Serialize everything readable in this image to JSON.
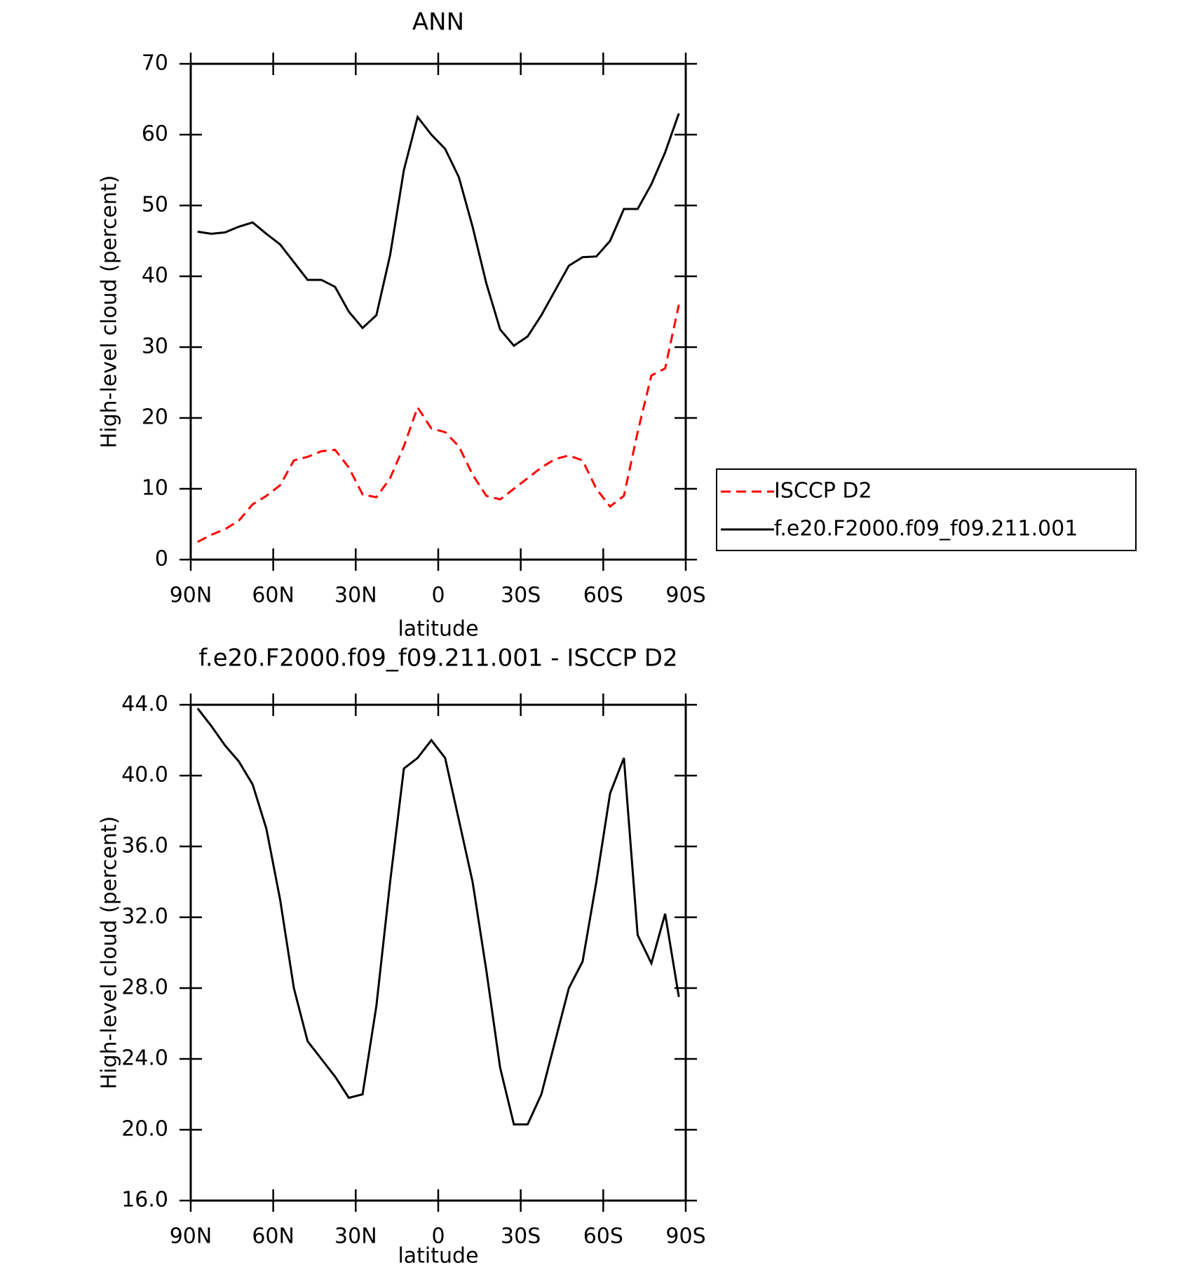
{
  "chart_data": [
    {
      "type": "line",
      "title": "ANN",
      "x_label": "latitude",
      "y_label": "High-level cloud (percent)",
      "x": [
        87.5,
        82.5,
        77.5,
        72.5,
        67.5,
        62.5,
        57.5,
        52.5,
        47.5,
        42.5,
        37.5,
        32.5,
        27.5,
        22.5,
        17.5,
        12.5,
        7.5,
        2.5,
        -2.5,
        -7.5,
        -12.5,
        -17.5,
        -22.5,
        -27.5,
        -32.5,
        -37.5,
        -42.5,
        -47.5,
        -52.5,
        -57.5,
        -62.5,
        -67.5,
        -72.5,
        -77.5,
        -82.5,
        -87.5
      ],
      "series": [
        {
          "name": "ISCCP D2",
          "color": "#ff0000",
          "dashed": true,
          "values": [
            2.5,
            3.5,
            4.3,
            5.5,
            7.8,
            9,
            10.5,
            14,
            14.5,
            15.3,
            15.5,
            13,
            9.2,
            8.8,
            11.5,
            16,
            21.5,
            18.5,
            18,
            16,
            12,
            9,
            8.5,
            10,
            11.5,
            13,
            14.2,
            14.7,
            14,
            10,
            7.5,
            9,
            18,
            26,
            27,
            36
          ]
        },
        {
          "name": "f.e20.F2000.f09_f09.211.001",
          "color": "#000000",
          "dashed": false,
          "values": [
            46.3,
            46.0,
            46.2,
            47.0,
            47.6,
            46,
            44.5,
            42,
            39.5,
            39.5,
            38.5,
            35,
            32.7,
            34.5,
            43,
            55,
            62.5,
            60,
            58,
            54,
            47,
            39,
            32.5,
            30.2,
            31.5,
            34.5,
            38,
            41.5,
            42.7,
            42.8,
            45,
            49.5,
            49.5,
            53,
            57.5,
            63
          ]
        }
      ],
      "xlim": [
        90,
        -90
      ],
      "xticks": [
        {
          "value": 90,
          "label": "90N"
        },
        {
          "value": 60,
          "label": "60N"
        },
        {
          "value": 30,
          "label": "30N"
        },
        0,
        {
          "value": -30,
          "label": "30S"
        },
        {
          "value": -60,
          "label": "60S"
        },
        {
          "value": -90,
          "label": "90S"
        }
      ],
      "ylim": [
        0,
        70
      ],
      "yticks": [
        0,
        10,
        20,
        30,
        40,
        50,
        60,
        70
      ],
      "legend": "outside-right"
    },
    {
      "type": "line",
      "title": "f.e20.F2000.f09_f09.211.001 - ISCCP D2",
      "x_label": "latitude",
      "y_label": "High-level cloud (percent)",
      "x": [
        87.5,
        82.5,
        77.5,
        72.5,
        67.5,
        62.5,
        57.5,
        52.5,
        47.5,
        42.5,
        37.5,
        32.5,
        27.5,
        22.5,
        17.5,
        12.5,
        7.5,
        2.5,
        -2.5,
        -7.5,
        -12.5,
        -17.5,
        -22.5,
        -27.5,
        -32.5,
        -37.5,
        -42.5,
        -47.5,
        -52.5,
        -57.5,
        -62.5,
        -67.5,
        -72.5,
        -77.5,
        -82.5,
        -87.5
      ],
      "values": [
        43.8,
        42.8,
        41.7,
        40.8,
        39.5,
        37,
        33,
        28,
        25,
        24,
        23,
        21.8,
        22,
        27,
        34,
        40.4,
        41,
        42,
        41,
        37.5,
        34,
        29,
        23.5,
        20.3,
        20.3,
        22,
        25,
        28,
        29.5,
        34,
        39,
        41,
        31,
        29.4,
        32.2,
        27.5
      ],
      "color": "#000000",
      "xlim": [
        90,
        -90
      ],
      "xticks": [
        {
          "value": 90,
          "label": "90N"
        },
        {
          "value": 60,
          "label": "60N"
        },
        {
          "value": 30,
          "label": "30N"
        },
        0,
        {
          "value": -30,
          "label": "30S"
        },
        {
          "value": -60,
          "label": "60S"
        },
        {
          "value": -90,
          "label": "90S"
        }
      ],
      "ylim": [
        16,
        44
      ],
      "yticks": [
        {
          "value": 16,
          "label": "16.0"
        },
        {
          "value": 20,
          "label": "20.0"
        },
        {
          "value": 24,
          "label": "24.0"
        },
        {
          "value": 28,
          "label": "28.0"
        },
        {
          "value": 32,
          "label": "32.0"
        },
        {
          "value": 36,
          "label": "36.0"
        },
        {
          "value": 40,
          "label": "40.0"
        },
        {
          "value": 44,
          "label": "44.0"
        }
      ]
    }
  ]
}
